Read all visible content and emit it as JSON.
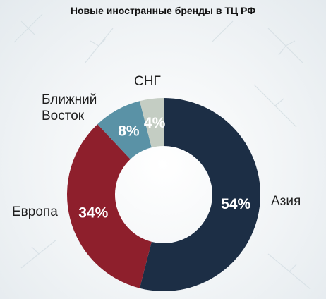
{
  "chart_data": {
    "type": "pie",
    "title": "Новые иностранные бренды в ТЦ РФ",
    "donut": true,
    "start": "top",
    "direction": "clockwise",
    "slices": [
      {
        "category": "Азия",
        "value": 54,
        "value_label": "54%",
        "color": "#1c2e45"
      },
      {
        "category": "Европа",
        "value": 34,
        "value_label": "34%",
        "color": "#8e1f2c"
      },
      {
        "category": "Ближний Восток",
        "category_lines": [
          "Ближний",
          "Восток"
        ],
        "value": 8,
        "value_label": "8%",
        "color": "#5a92a6"
      },
      {
        "category": "СНГ",
        "value": 4,
        "value_label": "4%",
        "color": "#c4cdc3"
      }
    ]
  }
}
